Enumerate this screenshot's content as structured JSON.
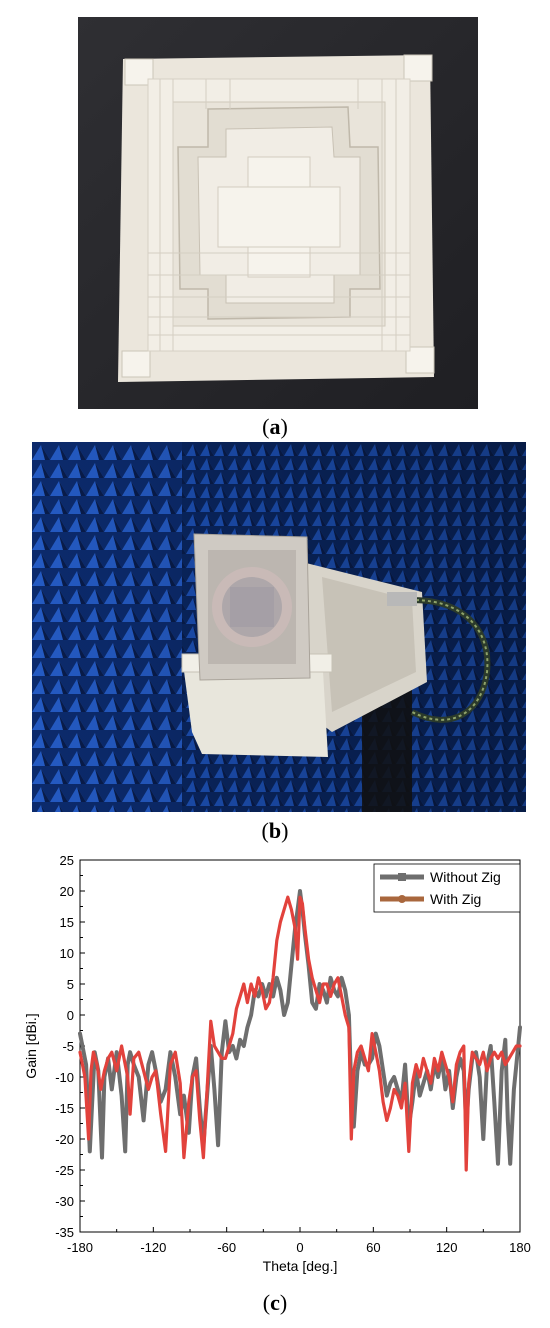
{
  "figure": {
    "panels": [
      {
        "letter": "a"
      },
      {
        "letter": "b"
      },
      {
        "letter": "c"
      }
    ],
    "caption_open": "(",
    "caption_close": ")"
  },
  "chart_data": {
    "type": "line",
    "xlabel": "Theta [deg.]",
    "ylabel": "Gain [dBi.]",
    "xlim": [
      -180,
      180
    ],
    "ylim": [
      -35,
      25
    ],
    "xticks": [
      -180,
      -120,
      -60,
      0,
      60,
      120,
      180
    ],
    "yticks": [
      25,
      20,
      15,
      10,
      5,
      0,
      -5,
      -10,
      -15,
      -20,
      -25,
      -30,
      -35
    ],
    "grid": false,
    "legend_position": "top-right",
    "series": [
      {
        "name": "Without Zig",
        "color": "#6e6e6e",
        "x": [
          -180,
          -175,
          -172,
          -170,
          -168,
          -165,
          -162,
          -160,
          -157,
          -154,
          -150,
          -146,
          -143,
          -141,
          -139,
          -136,
          -132,
          -128,
          -124,
          -121,
          -118,
          -114,
          -110,
          -106,
          -102,
          -98,
          -95,
          -91,
          -88,
          -85,
          -82,
          -79,
          -76,
          -73,
          -70,
          -67,
          -64,
          -61,
          -58,
          -55,
          -52,
          -49,
          -46,
          -43,
          -40,
          -37,
          -34,
          -31,
          -28,
          -25,
          -22,
          -19,
          -16,
          -13,
          -10,
          -7,
          -4,
          -2,
          0,
          2,
          4,
          7,
          10,
          13,
          16,
          19,
          22,
          25,
          28,
          31,
          34,
          37,
          40,
          42,
          44,
          47,
          50,
          53,
          56,
          59,
          62,
          65,
          68,
          71,
          74,
          77,
          80,
          83,
          86,
          89,
          92,
          95,
          98,
          101,
          104,
          107,
          110,
          113,
          116,
          119,
          122,
          125,
          128,
          131,
          134,
          136,
          138,
          141,
          144,
          147,
          150,
          153,
          156,
          159,
          162,
          165,
          168,
          170,
          172,
          175,
          178,
          180
        ],
        "y": [
          -3,
          -8,
          -22,
          -14,
          -6,
          -9,
          -23,
          -10,
          -7,
          -12,
          -6,
          -13,
          -22,
          -8,
          -6,
          -8,
          -10,
          -17,
          -8,
          -6,
          -9,
          -14,
          -12,
          -6,
          -10,
          -16,
          -13,
          -19,
          -10,
          -7,
          -15,
          -21,
          -13,
          -5,
          -12,
          -21,
          -6,
          -1,
          -6,
          -5,
          -7,
          -4,
          -5,
          -2,
          0,
          4,
          3,
          5,
          3,
          5,
          3,
          6,
          4,
          0,
          2,
          8,
          14,
          17,
          20,
          17,
          13,
          8,
          2,
          1,
          5,
          4,
          2,
          6,
          4,
          3,
          6,
          4,
          0,
          -12,
          -18,
          -9,
          -6,
          -8,
          -8,
          -7,
          -3,
          -5,
          -9,
          -13,
          -11,
          -10,
          -12,
          -14,
          -8,
          -18,
          -14,
          -9,
          -13,
          -11,
          -9,
          -12,
          -8,
          -10,
          -7,
          -12,
          -9,
          -15,
          -10,
          -7,
          -9,
          -18,
          -12,
          -7,
          -6,
          -10,
          -20,
          -8,
          -5,
          -14,
          -24,
          -9,
          -4,
          -17,
          -24,
          -12,
          -6,
          -2
        ]
      },
      {
        "name": "With Zig",
        "color": "#a9673d",
        "line_color": "#e2423c",
        "x": [
          -180,
          -176,
          -173,
          -171,
          -169,
          -166,
          -163,
          -160,
          -157,
          -154,
          -150,
          -146,
          -143,
          -141,
          -139,
          -136,
          -132,
          -128,
          -124,
          -121,
          -118,
          -114,
          -110,
          -106,
          -102,
          -98,
          -95,
          -91,
          -88,
          -85,
          -82,
          -79,
          -76,
          -73,
          -70,
          -67,
          -64,
          -61,
          -58,
          -55,
          -52,
          -49,
          -46,
          -43,
          -40,
          -37,
          -34,
          -31,
          -28,
          -25,
          -22,
          -19,
          -16,
          -13,
          -10,
          -7,
          -4,
          -2,
          0,
          2,
          4,
          7,
          10,
          13,
          16,
          19,
          22,
          25,
          28,
          31,
          34,
          37,
          40,
          42,
          44,
          47,
          50,
          53,
          56,
          59,
          62,
          65,
          68,
          71,
          74,
          77,
          80,
          83,
          86,
          89,
          92,
          95,
          98,
          101,
          104,
          107,
          110,
          113,
          116,
          119,
          122,
          125,
          128,
          131,
          134,
          136,
          138,
          141,
          144,
          147,
          150,
          153,
          156,
          159,
          162,
          165,
          168,
          171,
          174,
          177,
          180
        ],
        "y": [
          -6,
          -10,
          -20,
          -9,
          -6,
          -8,
          -12,
          -9,
          -7,
          -6,
          -9,
          -5,
          -8,
          -10,
          -16,
          -7,
          -6,
          -9,
          -12,
          -10,
          -9,
          -16,
          -22,
          -8,
          -6,
          -11,
          -23,
          -14,
          -10,
          -9,
          -17,
          -23,
          -12,
          -1,
          -5,
          -6,
          -7,
          -7,
          -5,
          -3,
          1,
          3,
          5,
          2,
          5,
          3,
          6,
          4,
          1,
          2,
          6,
          12,
          15,
          17,
          19,
          17,
          14,
          9,
          19,
          18,
          14,
          9,
          6,
          4,
          2,
          5,
          5,
          3,
          5,
          6,
          3,
          0,
          -2,
          -20,
          -9,
          -6,
          -5,
          -7,
          -9,
          -3,
          -6,
          -9,
          -14,
          -17,
          -15,
          -12,
          -13,
          -15,
          -11,
          -22,
          -11,
          -8,
          -10,
          -7,
          -9,
          -11,
          -7,
          -9,
          -6,
          -8,
          -10,
          -14,
          -8,
          -6,
          -5,
          -25,
          -11,
          -6,
          -7,
          -8,
          -6,
          -9,
          -7,
          -6,
          -7,
          -6,
          -8,
          -7,
          -6,
          -5,
          -5
        ]
      }
    ]
  }
}
